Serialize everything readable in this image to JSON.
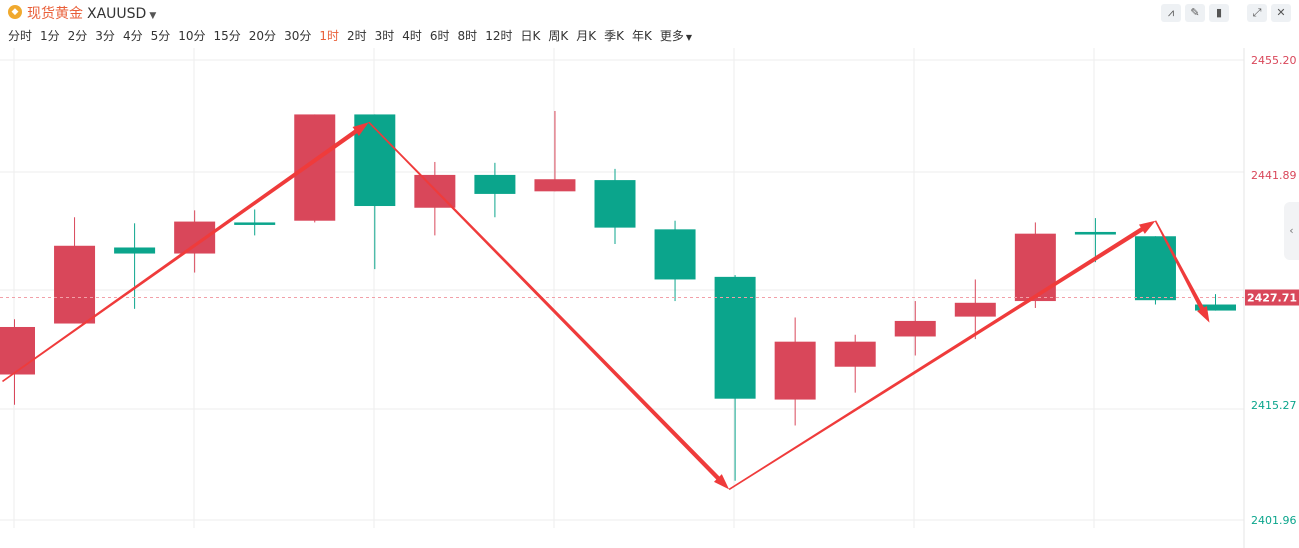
{
  "header": {
    "title": "现货黄金",
    "symbol": "XAUUSD",
    "tools": [
      {
        "name": "indicator-icon",
        "glyph": "⩘"
      },
      {
        "name": "draw-icon",
        "glyph": "✎"
      },
      {
        "name": "candle-style-icon",
        "glyph": "▮"
      },
      {
        "name": "fullscreen-icon",
        "glyph": "⤢"
      },
      {
        "name": "close-icon",
        "glyph": "✕"
      }
    ]
  },
  "periods": [
    "分时",
    "1分",
    "2分",
    "3分",
    "4分",
    "5分",
    "10分",
    "15分",
    "20分",
    "30分",
    "1时",
    "2时",
    "3时",
    "4时",
    "6时",
    "8时",
    "12时",
    "日K",
    "周K",
    "月K",
    "季K",
    "年K",
    "更多"
  ],
  "active_period": "1时",
  "colors": {
    "up": "#d9475a",
    "down": "#0ba58c",
    "arrow": "#ef3b3b",
    "accent": "#e9603a"
  },
  "chart_data": {
    "type": "candlestick",
    "y_ticks": [
      "2455.20",
      "2441.89",
      "2415.27",
      "2401.96"
    ],
    "y_tick_values": [
      2455.2,
      2441.89,
      2415.27,
      2401.96
    ],
    "ylim": [
      2401.5,
      2456.5
    ],
    "current_price": 2427.71,
    "current_price_label": "2427.71",
    "candles": [
      {
        "o": 2418.8,
        "c": 2424.3,
        "h": 2425.2,
        "l": 2415.3
      },
      {
        "o": 2424.7,
        "c": 2433.7,
        "h": 2437.0,
        "l": null
      },
      {
        "o": 2433.5,
        "c": 2432.8,
        "h": 2436.3,
        "l": 2426.4
      },
      {
        "o": 2432.8,
        "c": 2436.5,
        "h": 2437.8,
        "l": 2430.6
      },
      {
        "o": 2436.4,
        "c": 2436.3,
        "h": 2437.9,
        "l": 2434.9
      },
      {
        "o": 2436.6,
        "c": 2448.9,
        "h": null,
        "l": 2436.4
      },
      {
        "o": 2448.9,
        "c": 2438.3,
        "h": null,
        "l": 2431.0
      },
      {
        "o": 2438.1,
        "c": 2441.9,
        "h": 2443.4,
        "l": 2434.9
      },
      {
        "o": 2441.9,
        "c": 2439.7,
        "h": 2443.3,
        "l": 2437.0
      },
      {
        "o": 2440.0,
        "c": 2441.4,
        "h": 2449.3,
        "l": null
      },
      {
        "o": 2441.3,
        "c": 2435.8,
        "h": 2442.6,
        "l": 2433.9
      },
      {
        "o": 2435.6,
        "c": 2429.8,
        "h": 2436.6,
        "l": 2427.3
      },
      {
        "o": 2430.1,
        "c": 2416.0,
        "h": 2430.3,
        "l": 2406.5
      },
      {
        "o": 2415.9,
        "c": 2422.6,
        "h": 2425.4,
        "l": 2412.9
      },
      {
        "o": 2419.7,
        "c": 2422.6,
        "h": 2423.4,
        "l": 2416.7
      },
      {
        "o": 2423.2,
        "c": 2425.0,
        "h": 2427.3,
        "l": 2421.0
      },
      {
        "o": 2425.5,
        "c": 2427.1,
        "h": 2429.8,
        "l": 2422.9
      },
      {
        "o": 2427.3,
        "c": 2435.1,
        "h": 2436.4,
        "l": 2426.5
      },
      {
        "o": 2435.3,
        "c": 2435.0,
        "h": 2436.9,
        "l": 2431.8
      },
      {
        "o": 2434.8,
        "c": 2427.4,
        "h": null,
        "l": 2426.9
      },
      {
        "o": 2426.9,
        "c": 2426.2,
        "h": 2428.1,
        "l": null
      }
    ],
    "annotations": [
      {
        "type": "arrow",
        "from": [
          -0.2,
          2418.0
        ],
        "to": [
          5.9,
          2448.0
        ]
      },
      {
        "type": "arrow",
        "from": [
          5.9,
          2448.0
        ],
        "to": [
          11.9,
          2405.5
        ]
      },
      {
        "type": "arrow",
        "from": [
          11.9,
          2405.5
        ],
        "to": [
          19.0,
          2436.6
        ]
      },
      {
        "type": "arrow",
        "from": [
          19.0,
          2436.6
        ],
        "to": [
          19.9,
          2424.8
        ]
      }
    ]
  }
}
